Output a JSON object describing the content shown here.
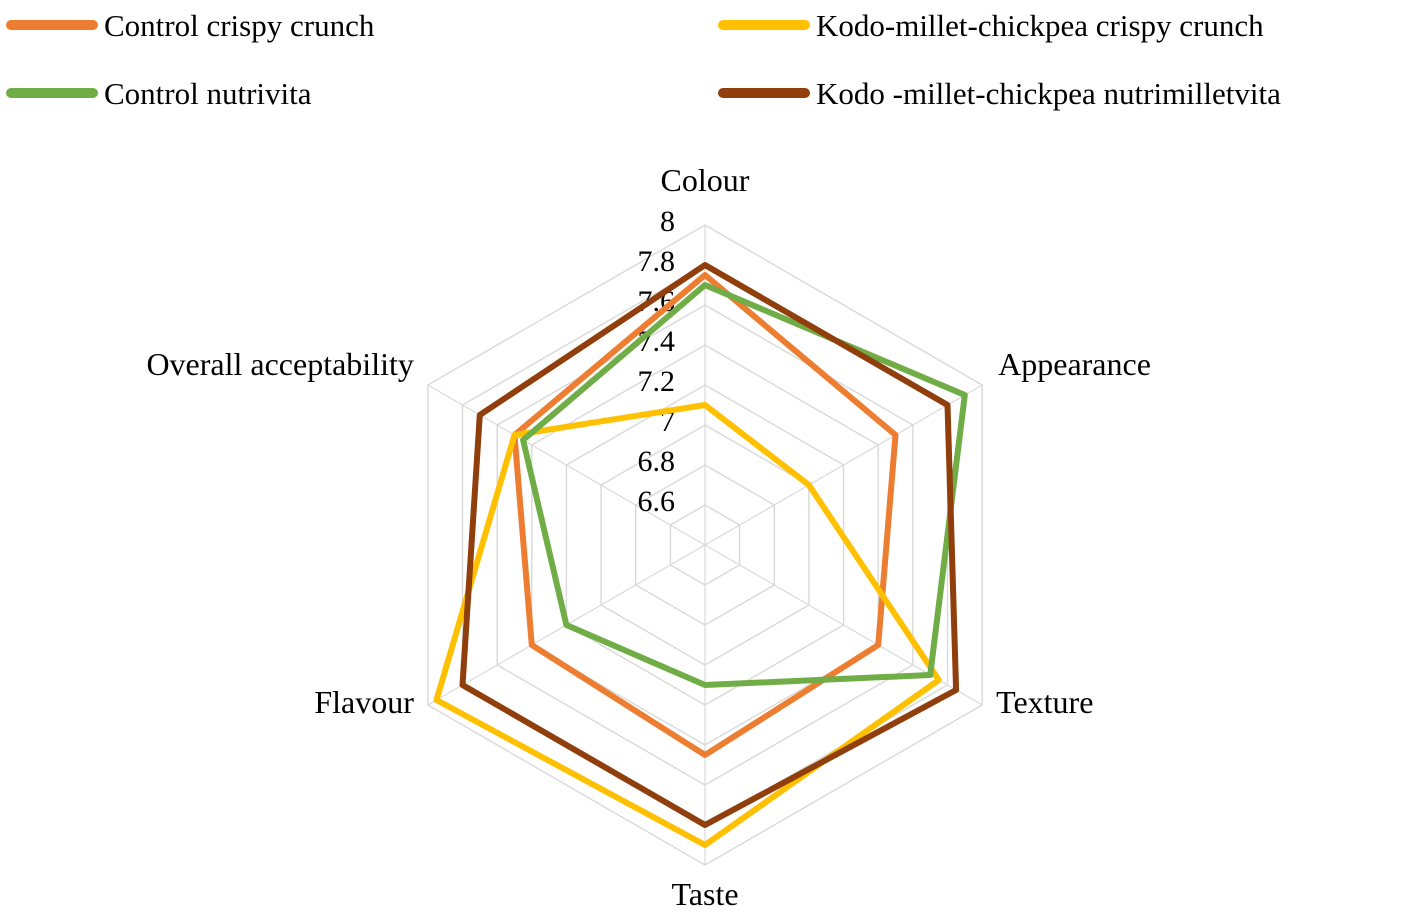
{
  "chart_data": {
    "type": "radar",
    "categories": [
      "Colour",
      "Appearance",
      "Texture",
      "Taste",
      "Flavour",
      "Overall acceptability"
    ],
    "series": [
      {
        "name": "Control crispy crunch",
        "color": "#ED7D31",
        "values": [
          7.75,
          7.5,
          7.4,
          7.45,
          7.4,
          7.5
        ]
      },
      {
        "name": "Kodo-millet-chickpea crispy crunch",
        "color": "#FFC000",
        "values": [
          7.1,
          7.0,
          7.75,
          7.9,
          7.95,
          7.5
        ]
      },
      {
        "name": "Control nutrivita",
        "color": "#70AD47",
        "values": [
          7.7,
          7.9,
          7.7,
          7.1,
          7.2,
          7.45
        ]
      },
      {
        "name": "Kodo -millet-chickpea nutrimilletvita",
        "color": "#8F3E0C",
        "values": [
          7.8,
          7.8,
          7.85,
          7.8,
          7.8,
          7.7
        ]
      }
    ],
    "radial_axis": {
      "min": 6.4,
      "max": 8,
      "step": 0.2,
      "tick_labels": [
        "8",
        "7.8",
        "7.6",
        "7.4",
        "7.2",
        "7",
        "6.8",
        "6.6"
      ]
    },
    "grid_color": "#D9D9D9",
    "background": "#FFFFFF",
    "legend_position": "top"
  }
}
